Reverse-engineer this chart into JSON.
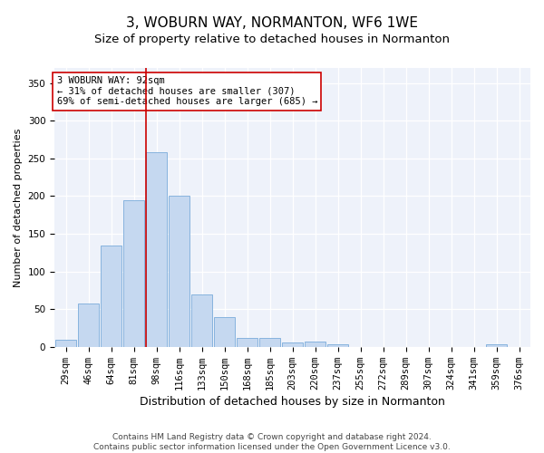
{
  "title": "3, WOBURN WAY, NORMANTON, WF6 1WE",
  "subtitle": "Size of property relative to detached houses in Normanton",
  "xlabel": "Distribution of detached houses by size in Normanton",
  "ylabel": "Number of detached properties",
  "categories": [
    "29sqm",
    "46sqm",
    "64sqm",
    "81sqm",
    "98sqm",
    "116sqm",
    "133sqm",
    "150sqm",
    "168sqm",
    "185sqm",
    "203sqm",
    "220sqm",
    "237sqm",
    "255sqm",
    "272sqm",
    "289sqm",
    "307sqm",
    "324sqm",
    "341sqm",
    "359sqm",
    "376sqm"
  ],
  "values": [
    9,
    57,
    135,
    195,
    258,
    200,
    70,
    40,
    12,
    12,
    6,
    7,
    3,
    0,
    0,
    0,
    0,
    0,
    0,
    3,
    0
  ],
  "bar_color": "#c5d8f0",
  "bar_edgecolor": "#7aabda",
  "bg_color": "#eef2fa",
  "grid_color": "#ffffff",
  "vline_color": "#cc0000",
  "annotation_title": "3 WOBURN WAY: 92sqm",
  "annotation_line1": "← 31% of detached houses are smaller (307)",
  "annotation_line2": "69% of semi-detached houses are larger (685) →",
  "annotation_box_facecolor": "#ffffff",
  "annotation_box_edgecolor": "#cc0000",
  "footer1": "Contains HM Land Registry data © Crown copyright and database right 2024.",
  "footer2": "Contains public sector information licensed under the Open Government Licence v3.0.",
  "ylim": [
    0,
    370
  ],
  "yticks": [
    0,
    50,
    100,
    150,
    200,
    250,
    300,
    350
  ],
  "title_fontsize": 11,
  "subtitle_fontsize": 9.5,
  "xlabel_fontsize": 9,
  "ylabel_fontsize": 8,
  "tick_fontsize": 7.5,
  "ann_fontsize": 7.5,
  "footer_fontsize": 6.5,
  "vline_pos": 3.55
}
